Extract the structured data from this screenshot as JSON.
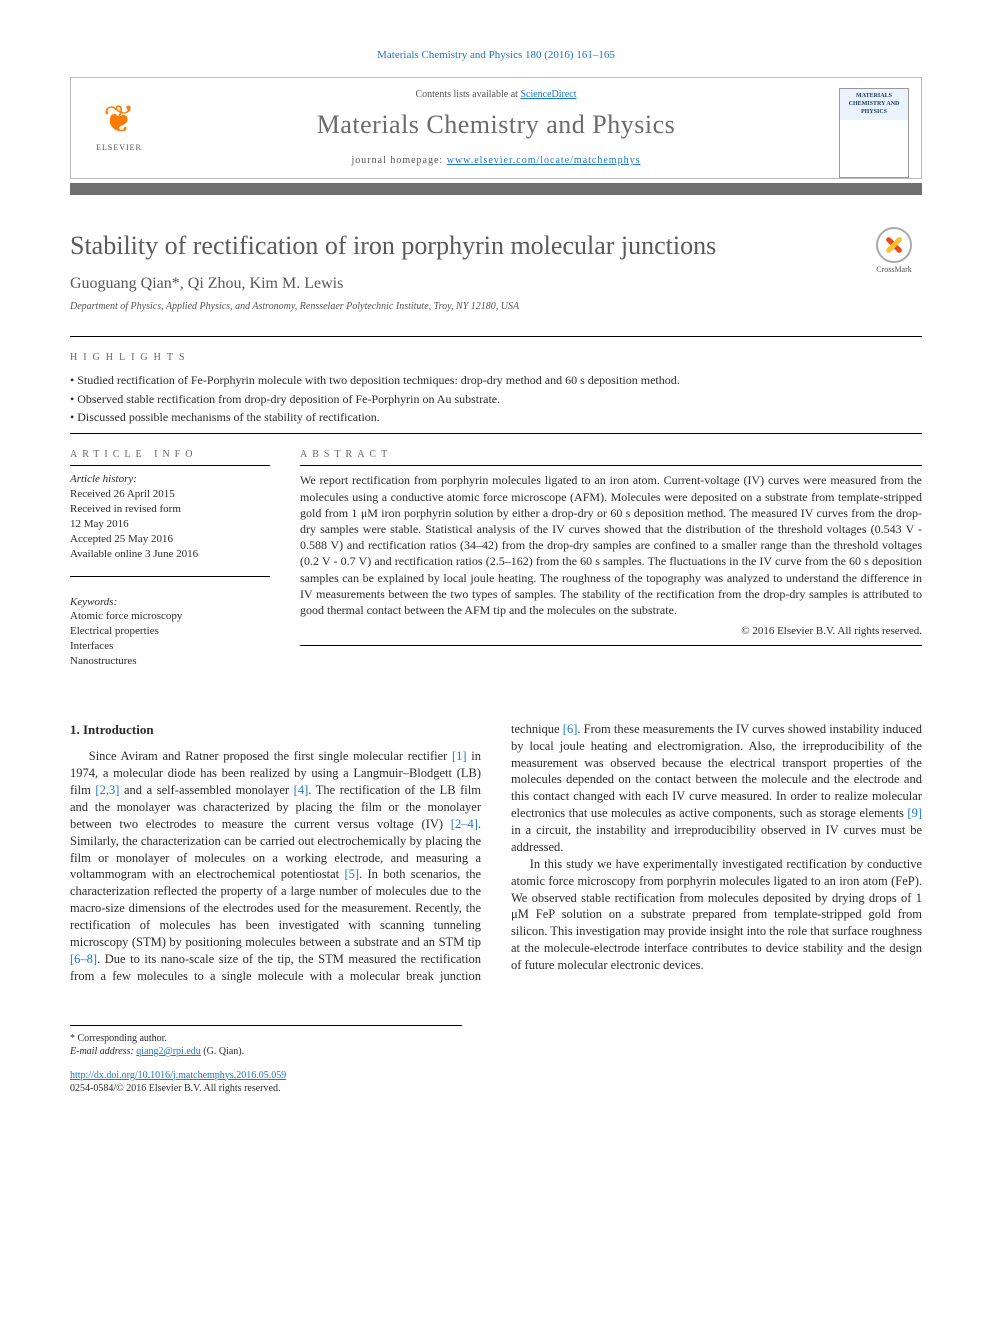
{
  "citation": "Materials Chemistry and Physics 180 (2016) 161–165",
  "header": {
    "contents_prefix": "Contents lists available at ",
    "contents_link": "ScienceDirect",
    "journal_name": "Materials Chemistry and Physics",
    "homepage_prefix": "journal homepage: ",
    "homepage_url": "www.elsevier.com/locate/matchemphys",
    "publisher": "ELSEVIER",
    "cover_text": "MATERIALS CHEMISTRY AND PHYSICS"
  },
  "crossmark_label": "CrossMark",
  "title": "Stability of rectification of iron porphyrin molecular junctions",
  "authors": "Guoguang Qian*, Qi Zhou, Kim M. Lewis",
  "affiliation": "Department of Physics, Applied Physics, and Astronomy, Rensselaer Polytechnic Institute, Troy, NY 12180, USA",
  "highlights_label": "HIGHLIGHTS",
  "highlights": [
    "Studied rectification of Fe-Porphyrin molecule with two deposition techniques: drop-dry method and 60 s deposition method.",
    "Observed stable rectification from drop-dry deposition of Fe-Porphyrin on Au substrate.",
    "Discussed possible mechanisms of the stability of rectification."
  ],
  "article_info_label": "ARTICLE INFO",
  "abstract_label": "ABSTRACT",
  "history_label": "Article history:",
  "history": [
    "Received 26 April 2015",
    "Received in revised form",
    "12 May 2016",
    "Accepted 25 May 2016",
    "Available online 3 June 2016"
  ],
  "keywords_label": "Keywords:",
  "keywords": [
    "Atomic force microscopy",
    "Electrical properties",
    "Interfaces",
    "Nanostructures"
  ],
  "abstract": "We report rectification from porphyrin molecules ligated to an iron atom. Current-voltage (IV) curves were measured from the molecules using a conductive atomic force microscope (AFM). Molecules were deposited on a substrate from template-stripped gold from 1 μM iron porphyrin solution by either a drop-dry or 60 s deposition method. The measured IV curves from the drop-dry samples were stable. Statistical analysis of the IV curves showed that the distribution of the threshold voltages (0.543 V - 0.588 V) and rectification ratios (34–42) from the drop-dry samples are confined to a smaller range than the threshold voltages (0.2 V - 0.7 V) and rectification ratios (2.5–162) from the 60 s samples. The fluctuations in the IV curve from the 60 s deposition samples can be explained by local joule heating. The roughness of the topography was analyzed to understand the difference in IV measurements between the two types of samples. The stability of the rectification from the drop-dry samples is attributed to good thermal contact between the AFM tip and the molecules on the substrate.",
  "copyright": "© 2016 Elsevier B.V. All rights reserved.",
  "section1_title": "1. Introduction",
  "body_paragraphs": [
    "Since Aviram and Ratner proposed the first single molecular rectifier [1] in 1974, a molecular diode has been realized by using a Langmuir–Blodgett (LB) film [2,3] and a self-assembled monolayer [4]. The rectification of the LB film and the monolayer was characterized by placing the film or the monolayer between two electrodes to measure the current versus voltage (IV) [2–4]. Similarly, the characterization can be carried out electrochemically by placing the film or monolayer of molecules on a working electrode, and measuring a voltammogram with an electrochemical potentiostat [5]. In both scenarios, the characterization reflected the property of a large number of molecules due to the macro-size dimensions of the electrodes used for the measurement. Recently, the rectification of molecules has been investigated with scanning tunneling microscopy (STM) by positioning molecules between a substrate and an STM tip [6–8]. Due to its nano-scale size of the tip, the STM measured the rectification from a few molecules to a single molecule with a molecular break junction technique [6]. From these measurements the IV curves showed instability induced by local joule heating and electromigration. Also, the irreproducibility of the measurement was observed because the electrical transport properties of the molecules depended on the contact between the molecule and the electrode and this contact changed with each IV curve measured. In order to realize molecular electronics that use molecules as active components, such as storage elements [9] in a circuit, the instability and irreproducibility observed in IV curves must be addressed.",
    "In this study we have experimentally investigated rectification by conductive atomic force microscopy from porphyrin molecules ligated to an iron atom (FeP). We observed stable rectification from molecules deposited by drying drops of 1 μM FeP solution on a substrate prepared from template-stripped gold from silicon. This investigation may provide insight into the role that surface roughness at the molecule-electrode interface contributes to device stability and the design of future molecular electronic devices."
  ],
  "refs": {
    "r1": "[1]",
    "r23": "[2,3]",
    "r4": "[4]",
    "r2_4": "[2–4]",
    "r5": "[5]",
    "r6_8": "[6–8]",
    "r6": "[6]",
    "r9": "[9]"
  },
  "corresponding": "* Corresponding author.",
  "email_label": "E-mail address: ",
  "email": "qiang2@rpi.edu",
  "email_suffix": " (G. Qian).",
  "doi": "http://dx.doi.org/10.1016/j.matchemphys.2016.05.059",
  "issn_line": "0254-0584/© 2016 Elsevier B.V. All rights reserved.",
  "colors": {
    "link": "#1976d2",
    "divider": "#6f6f6f",
    "title_grey": "#5a5a5a",
    "els_orange": "#ff7a00"
  }
}
